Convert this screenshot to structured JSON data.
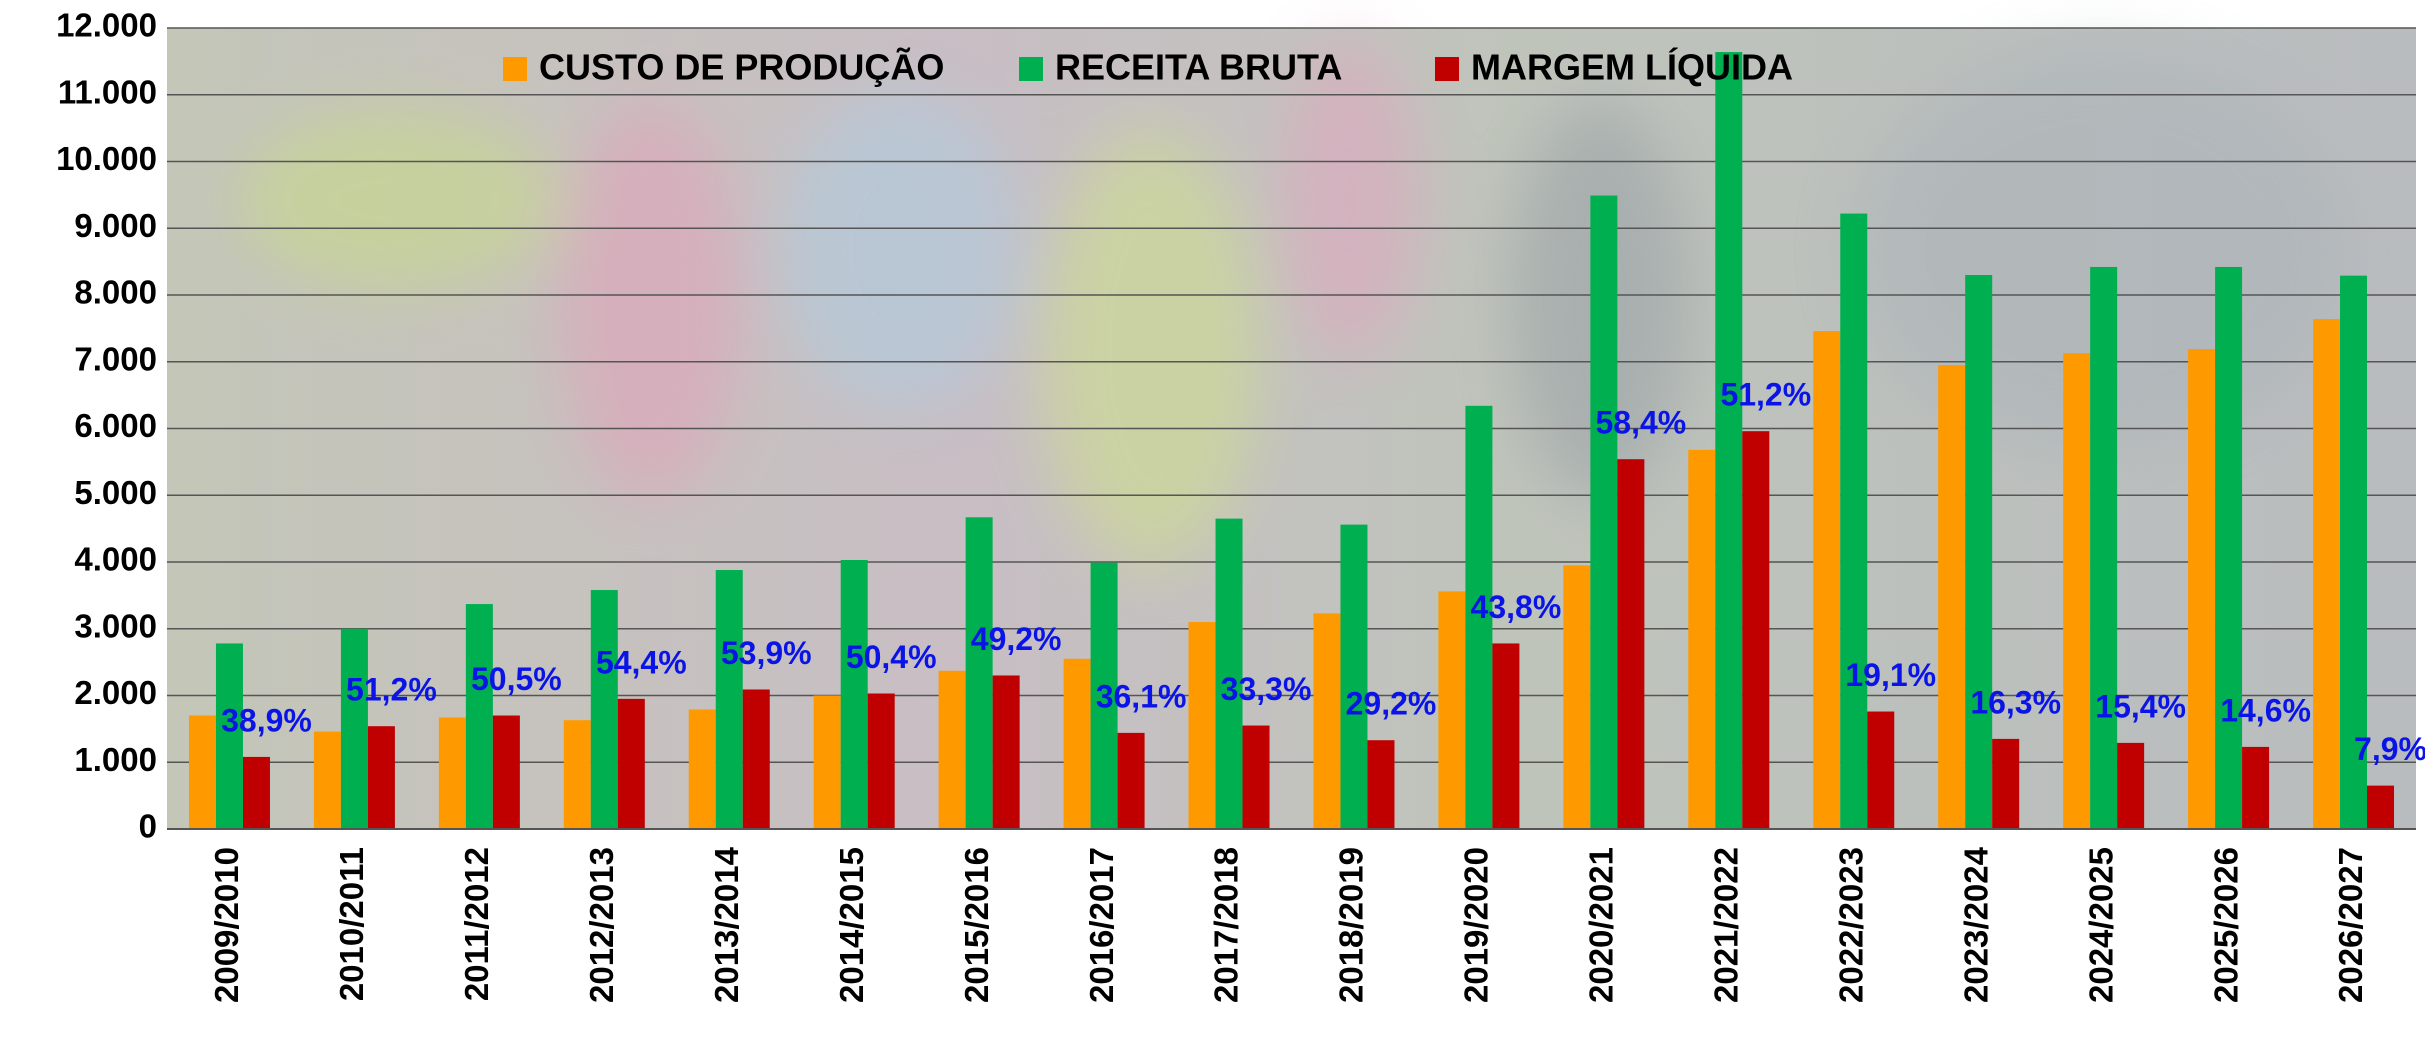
{
  "chart_data": {
    "type": "bar",
    "categories": [
      "2009/2010",
      "2010/2011",
      "2011/2012",
      "2012/2013",
      "2013/2014",
      "2014/2015",
      "2015/2016",
      "2016/2017",
      "2017/2018",
      "2018/2019",
      "2019/2020",
      "2020/2021",
      "2021/2022",
      "2022/2023",
      "2023/2024",
      "2024/2025",
      "2025/2026",
      "2026/2027"
    ],
    "series": [
      {
        "name": "CUSTO DE PRODUÇÃO",
        "color": "#ff9900",
        "values": [
          1700,
          1460,
          1670,
          1630,
          1790,
          2000,
          2370,
          2550,
          3100,
          3230,
          3560,
          3950,
          5680,
          7460,
          6950,
          7130,
          7190,
          7640
        ]
      },
      {
        "name": "RECEITA BRUTA",
        "color": "#00b050",
        "values": [
          2780,
          3000,
          3370,
          3580,
          3880,
          4030,
          4670,
          3990,
          4650,
          4560,
          6340,
          9490,
          11640,
          9220,
          8300,
          8420,
          8420,
          8290
        ]
      },
      {
        "name": "MARGEM LÍQUIDA",
        "color": "#c00000",
        "values": [
          1080,
          1540,
          1700,
          1950,
          2090,
          2030,
          2300,
          1440,
          1550,
          1330,
          2780,
          5540,
          5960,
          1760,
          1350,
          1290,
          1230,
          650
        ]
      }
    ],
    "margin_percent": {
      "values": [
        38.9,
        51.2,
        50.5,
        54.4,
        53.9,
        50.4,
        49.2,
        36.1,
        33.3,
        29.2,
        43.8,
        58.4,
        51.2,
        19.1,
        16.3,
        15.4,
        14.6,
        7.9
      ],
      "value_labels": [
        "38,9%",
        "51,2%",
        "50,5%",
        "54,4%",
        "53,9%",
        "50,4%",
        "49,2%",
        "36,1%",
        "33,3%",
        "29,2%",
        "43,8%",
        "58,4%",
        "51,2%",
        "19,1%",
        "16,3%",
        "15,4%",
        "14,6%",
        "7,9%"
      ],
      "color": "#0a14e6"
    },
    "ylim": [
      0,
      12000
    ],
    "yticks": [
      0,
      {
        "value": 1000,
        "label": "1.000"
      },
      {
        "value": 2000,
        "label": "2.000"
      },
      {
        "value": 3000,
        "label": "3.000"
      },
      {
        "value": 4000,
        "label": "4.000"
      },
      {
        "value": 5000,
        "label": "5.000"
      },
      {
        "value": 6000,
        "label": "6.000"
      },
      {
        "value": 7000,
        "label": "7.000"
      },
      {
        "value": 8000,
        "label": "8.000"
      },
      {
        "value": 9000,
        "label": "9.000"
      },
      {
        "value": 10000,
        "label": "10.000"
      },
      {
        "value": 11000,
        "label": "11.000"
      },
      {
        "value": 12000,
        "label": "12.000"
      }
    ],
    "grid": true,
    "legend": "top"
  }
}
